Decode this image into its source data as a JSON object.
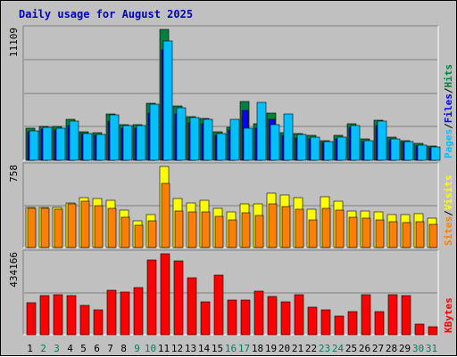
{
  "title": "Daily usage for August 2025",
  "chart_data": {
    "type": "bar",
    "x": [
      "1",
      "2",
      "3",
      "4",
      "5",
      "6",
      "7",
      "8",
      "9",
      "10",
      "11",
      "12",
      "13",
      "14",
      "15",
      "16",
      "17",
      "18",
      "19",
      "20",
      "21",
      "22",
      "23",
      "24",
      "25",
      "26",
      "27",
      "28",
      "29",
      "30",
      "31"
    ],
    "weekend_days": [
      "2",
      "3",
      "9",
      "10",
      "16",
      "17",
      "23",
      "24",
      "30",
      "31"
    ],
    "panels": [
      {
        "name": "hits-files-pages",
        "ymax_label": "11109",
        "ymax": 11109,
        "side_labels": [
          "Pages",
          "Files",
          "Hits"
        ],
        "side_colors": [
          "#00c0ff",
          "#0000ff",
          "#008040"
        ],
        "series": [
          {
            "name": "Hits",
            "color": "#008040",
            "values": [
              2700,
              2900,
              2850,
              3450,
              2450,
              2350,
              3950,
              3050,
              3050,
              4800,
              11109,
              4600,
              3700,
              3550,
              2400,
              2800,
              4950,
              3100,
              4000,
              2350,
              2250,
              2100,
              1700,
              2100,
              3100,
              1800,
              3400,
              2000,
              1700,
              1400,
              1200
            ]
          },
          {
            "name": "Files",
            "color": "#0000ff",
            "values": [
              2450,
              2650,
              2600,
              2950,
              2250,
              2100,
              3300,
              2700,
              2700,
              4000,
              9400,
              3900,
              3200,
              3100,
              2150,
              2550,
              4200,
              2750,
              3450,
              2100,
              1900,
              1850,
              1500,
              1850,
              2800,
              1550,
              2950,
              1750,
              1500,
              1200,
              1050
            ]
          },
          {
            "name": "Pages",
            "color": "#00c0ff",
            "values": [
              2500,
              2800,
              2750,
              3300,
              2300,
              2200,
              3850,
              2950,
              2950,
              4750,
              10100,
              4450,
              3600,
              3450,
              2300,
              3450,
              2700,
              4900,
              3050,
              3900,
              2200,
              2000,
              1600,
              2000,
              2950,
              1700,
              3300,
              1850,
              1550,
              1300,
              1100
            ]
          }
        ]
      },
      {
        "name": "visits-sites",
        "ymax_label": "758",
        "ymax": 758,
        "side_labels": [
          "Sites",
          "Visits"
        ],
        "side_colors": [
          "#ff8000",
          "#ffff00"
        ],
        "series": [
          {
            "name": "Visits",
            "color": "#ffff00",
            "values": [
              375,
              375,
              375,
              420,
              470,
              460,
              445,
              350,
              250,
              310,
              758,
              460,
              420,
              445,
              365,
              330,
              405,
              410,
              505,
              490,
              465,
              360,
              475,
              430,
              340,
              340,
              330,
              310,
              310,
              320,
              275
            ]
          },
          {
            "name": "Sites",
            "color": "#ff8000",
            "values": [
              370,
              365,
              360,
              410,
              430,
              395,
              370,
              280,
              205,
              250,
              600,
              340,
              335,
              335,
              295,
              255,
              325,
              300,
              410,
              380,
              355,
              260,
              370,
              350,
              280,
              275,
              260,
              245,
              230,
              240,
              220
            ]
          }
        ]
      },
      {
        "name": "kbytes",
        "ymax_label": "434166",
        "ymax": 434166,
        "side_labels": [
          "KBytes"
        ],
        "side_colors": [
          "#ff0000"
        ],
        "series": [
          {
            "name": "KBytes",
            "color": "#ff0000",
            "values": [
              170000,
              210000,
              213000,
              210000,
              158000,
              134000,
              237000,
              230000,
              255000,
              403000,
              434166,
              395000,
              305000,
              178000,
              320000,
              185000,
              188000,
              236000,
              207000,
              175000,
              213000,
              148000,
              133000,
              100000,
              125000,
              215000,
              122000,
              217000,
              210000,
              57000,
              45000
            ]
          }
        ]
      }
    ]
  }
}
